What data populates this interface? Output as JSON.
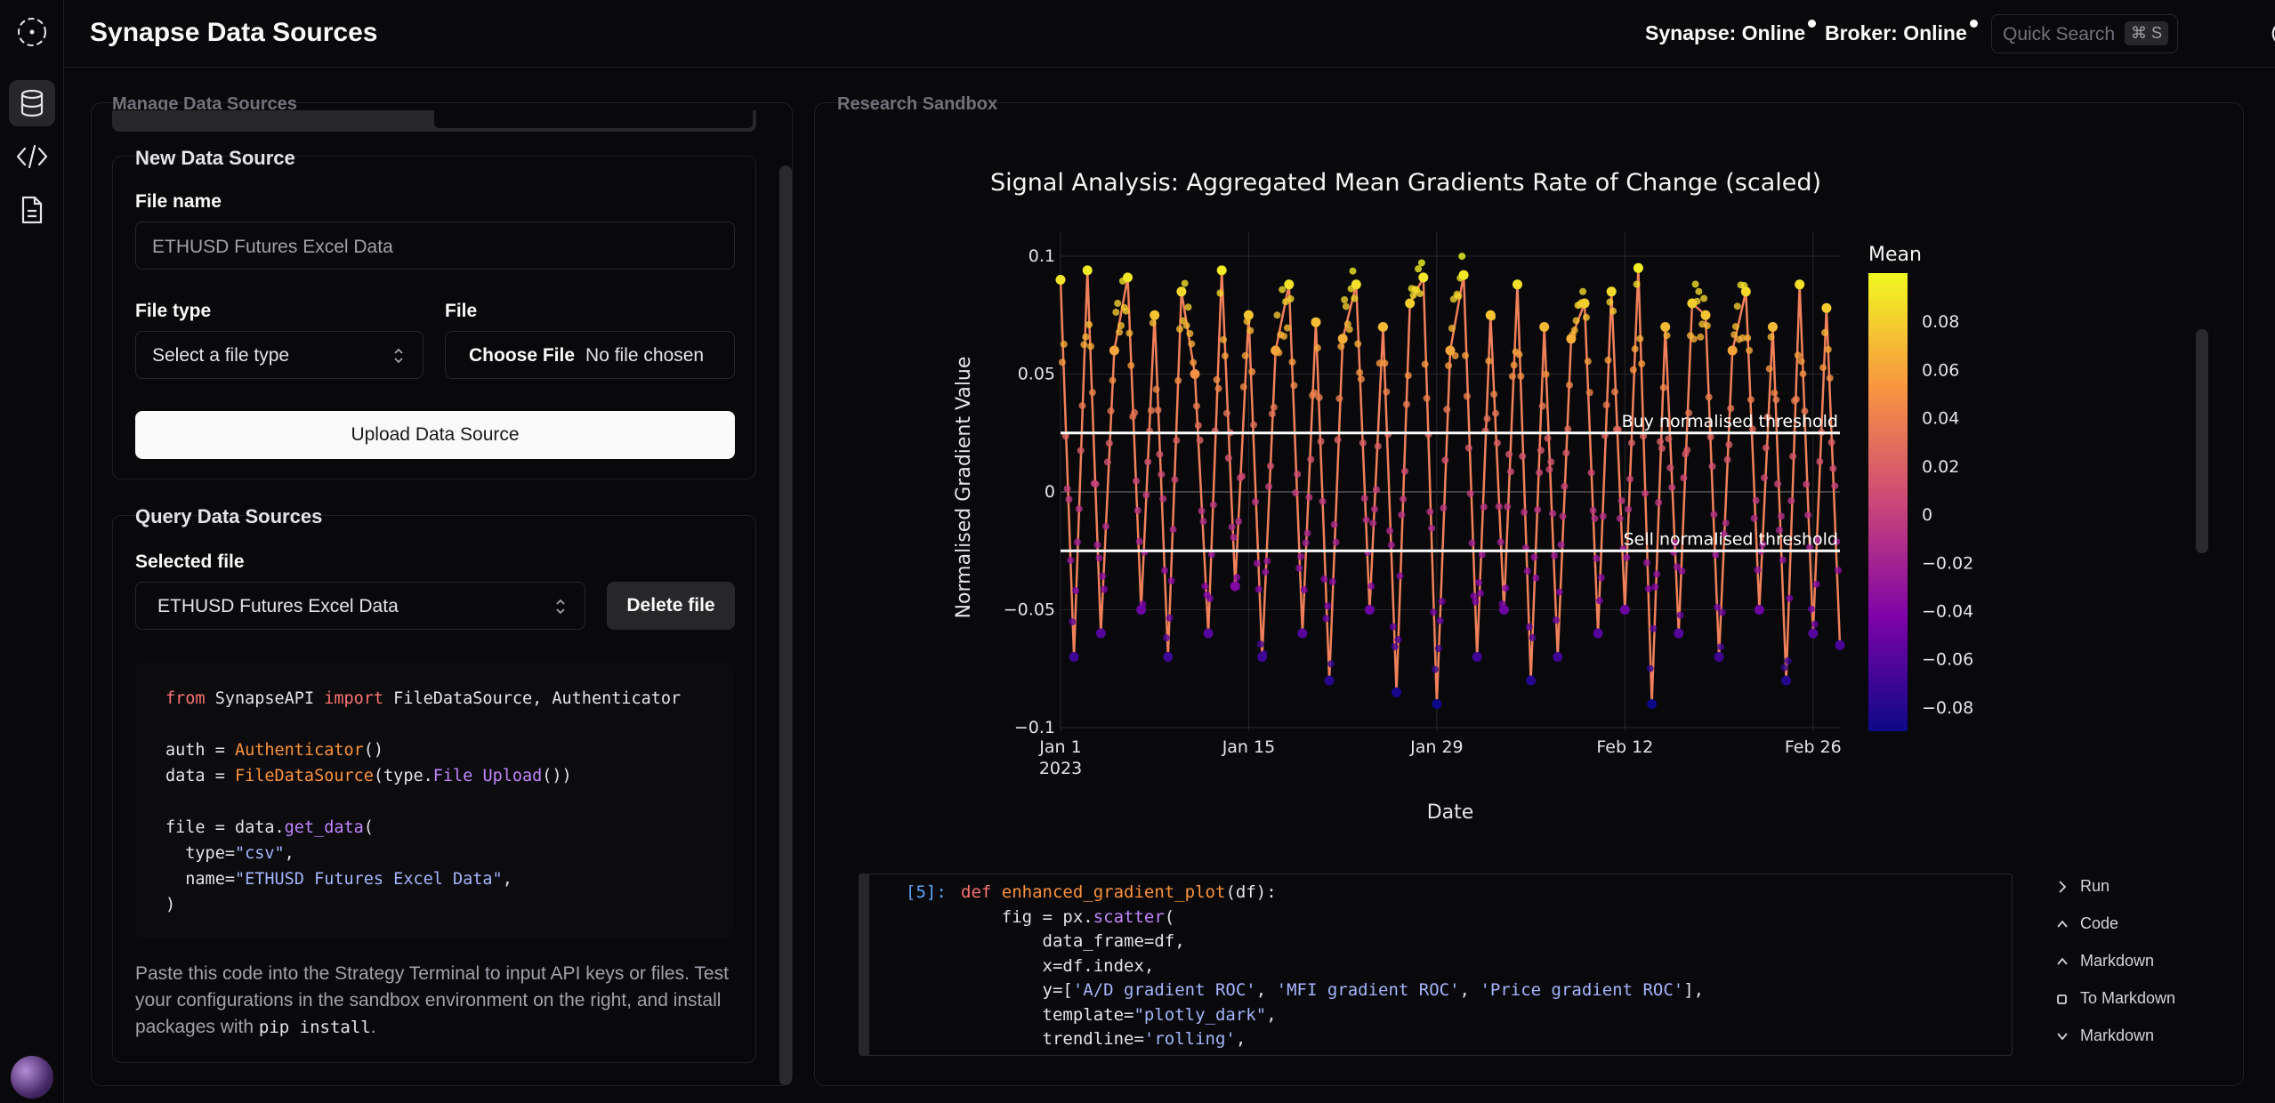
{
  "header": {
    "title": "Synapse Data Sources",
    "synapse_status": "Synapse: Online",
    "broker_status": "Broker: Online",
    "search_placeholder": "Quick Search",
    "search_shortcut": "⌘ S"
  },
  "sidebar": {
    "items": [
      {
        "icon": "database-icon"
      },
      {
        "icon": "code-icon"
      },
      {
        "icon": "document-icon"
      }
    ]
  },
  "left_panel": {
    "label": "Manage Data Sources",
    "new_source": {
      "title": "New Data Source",
      "file_name_label": "File name",
      "file_name_value": "ETHUSD Futures Excel Data",
      "file_type_label": "File type",
      "file_type_value": "Select a file type",
      "file_label": "File",
      "choose_file": "Choose File",
      "no_file": "No file chosen",
      "upload_button": "Upload Data Source"
    },
    "query": {
      "title": "Query Data Sources",
      "selected_label": "Selected file",
      "selected_value": "ETHUSD Futures Excel Data",
      "delete_button": "Delete file"
    },
    "code_lines": {
      "l1a": "from",
      "l1b": " SynapseAPI ",
      "l1c": "import",
      "l1d": " FileDataSource, Authenticator",
      "l3a": "auth = ",
      "l3b": "Authenticator",
      "l3c": "()",
      "l4a": "data = ",
      "l4b": "FileDataSource",
      "l4c": "(type.",
      "l4d": "File",
      "l4e": " ",
      "l4f": "Upload",
      "l4g": "())",
      "l6a": "file = data.",
      "l6b": "get_data",
      "l6c": "(",
      "l7a": "  type=",
      "l7b": "\"csv\"",
      "l7c": ",",
      "l8a": "  name=",
      "l8b": "\"ETHUSD Futures Excel Data\"",
      "l8c": ",",
      "l9": ")"
    },
    "help_pre": "Paste this code into the Strategy Terminal to input API keys or files. Test your configurations in the sandbox environment on the right, and install packages with ",
    "help_code": "pip install",
    "help_post": "."
  },
  "right_panel": {
    "label": "Research Sandbox",
    "notebook": {
      "prompt": "[5]:",
      "lines": {
        "c1a": "def",
        "c1b": " enhanced_gradient_plot",
        "c1c": "(df):",
        "c2a": "    fig = px.",
        "c2b": "scatter",
        "c2c": "(",
        "c3": "        data_frame=df,",
        "c4": "        x=df.index,",
        "c5a": "        y=[",
        "c5b": "'A/D gradient ROC'",
        "c5c": ", ",
        "c5d": "'MFI gradient ROC'",
        "c5e": ", ",
        "c5f": "'Price gradient ROC'",
        "c5g": "],",
        "c6a": "        template=",
        "c6b": "\"plotly_dark\"",
        "c6c": ",",
        "c7a": "        trendline=",
        "c7b": "'rolling'",
        "c7c": ","
      },
      "actions": [
        {
          "label": "Run",
          "icon": "chevron-right-icon"
        },
        {
          "label": "Code",
          "icon": "chevron-up-icon"
        },
        {
          "label": "Markdown",
          "icon": "chevron-up-icon"
        },
        {
          "label": "To Markdown",
          "icon": "square-icon"
        },
        {
          "label": "Markdown",
          "icon": "chevron-down-icon"
        }
      ]
    }
  },
  "chart_data": {
    "type": "scatter",
    "title": "Signal Analysis: Aggregated Mean Gradients Rate of Change (scaled)",
    "xlabel": "Date",
    "ylabel": "Normalised Gradient Value",
    "x_ticks": [
      "Jan 1",
      "Jan 15",
      "Jan 29",
      "Feb 12",
      "Feb 26"
    ],
    "x_tick_sub": "2023",
    "x_range": [
      "2023-01-01",
      "2023-02-28"
    ],
    "ylim": [
      -0.1,
      0.1
    ],
    "y_ticks": [
      0.1,
      0.05,
      0,
      -0.05,
      -0.1
    ],
    "y_tick_labels": [
      "0.1",
      "0.05",
      "0",
      "−0.05",
      "−0.1"
    ],
    "thresholds": [
      {
        "label": "Buy normalised threshold",
        "value": 0.025
      },
      {
        "label": "Sell normalised threshold",
        "value": -0.025
      }
    ],
    "colorbar": {
      "title": "Mean",
      "range": [
        -0.09,
        0.1
      ],
      "ticks": [
        0.08,
        0.06,
        0.04,
        0.02,
        0,
        -0.02,
        -0.04,
        -0.06,
        -0.08
      ],
      "tick_labels": [
        "0.08",
        "0.06",
        "0.04",
        "0.02",
        "0",
        "−0.02",
        "−0.04",
        "−0.06",
        "−0.08"
      ]
    },
    "series": [
      {
        "x": [
          "2023-01-01",
          "2023-01-02",
          "2023-01-03",
          "2023-01-04",
          "2023-01-05",
          "2023-01-06",
          "2023-01-07",
          "2023-01-08",
          "2023-01-09",
          "2023-01-10",
          "2023-01-11",
          "2023-01-12",
          "2023-01-13",
          "2023-01-14",
          "2023-01-15",
          "2023-01-16",
          "2023-01-17",
          "2023-01-18",
          "2023-01-19",
          "2023-01-20",
          "2023-01-21",
          "2023-01-22",
          "2023-01-23",
          "2023-01-24",
          "2023-01-25",
          "2023-01-26",
          "2023-01-27",
          "2023-01-28",
          "2023-01-29",
          "2023-01-30",
          "2023-01-31",
          "2023-02-01",
          "2023-02-02",
          "2023-02-03",
          "2023-02-04",
          "2023-02-05",
          "2023-02-06",
          "2023-02-07",
          "2023-02-08",
          "2023-02-09",
          "2023-02-10",
          "2023-02-11",
          "2023-02-12",
          "2023-02-13",
          "2023-02-14",
          "2023-02-15",
          "2023-02-16",
          "2023-02-17",
          "2023-02-18",
          "2023-02-19",
          "2023-02-20",
          "2023-02-21",
          "2023-02-22",
          "2023-02-23",
          "2023-02-24",
          "2023-02-25",
          "2023-02-26",
          "2023-02-27",
          "2023-02-28"
        ],
        "y": [
          0.09,
          -0.07,
          0.094,
          -0.06,
          0.06,
          0.091,
          -0.05,
          0.075,
          -0.07,
          0.085,
          0.05,
          -0.06,
          0.094,
          -0.04,
          0.075,
          -0.07,
          0.06,
          0.088,
          -0.06,
          0.072,
          -0.08,
          0.065,
          0.088,
          -0.05,
          0.07,
          -0.085,
          0.08,
          0.091,
          -0.09,
          0.06,
          0.092,
          -0.07,
          0.075,
          -0.05,
          0.088,
          -0.08,
          0.07,
          -0.07,
          0.065,
          0.08,
          -0.06,
          0.085,
          -0.05,
          0.095,
          -0.09,
          0.07,
          -0.06,
          0.08,
          0.075,
          -0.07,
          0.06,
          0.085,
          -0.05,
          0.07,
          -0.08,
          0.088,
          -0.06,
          0.078,
          -0.065
        ]
      }
    ]
  }
}
